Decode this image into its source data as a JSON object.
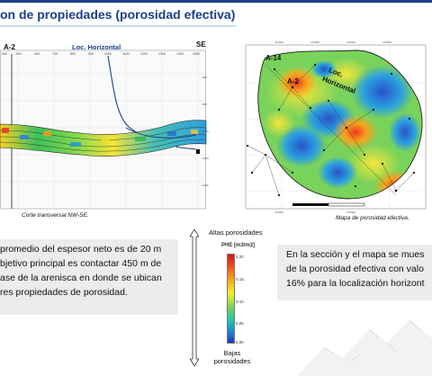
{
  "title": "on de propiedades (porosidad efectiva)",
  "section": {
    "well_label": "A-2",
    "loc_label": "Loc. Horizontal",
    "direction": "SE",
    "caption": "Corte transversal NW-SE."
  },
  "map": {
    "well_a14": "A-14",
    "well_a2": "A-2",
    "loc_line1": "Loc.",
    "loc_line2": "Horizontal",
    "caption": "Mapa de porosidad efectiva."
  },
  "legend": {
    "top_label": "Altas porosidades",
    "title": "PHE [m3/m3]",
    "ticks": [
      "0.20",
      "0.15",
      "0.10",
      "0.05",
      "0.00"
    ],
    "bottom_line1": "Bajas",
    "bottom_line2": "porosidades"
  },
  "left_text": {
    "line1": "promedio del espesor neto es de 20 m",
    "line2": "bjetivo principal es contactar 450 m de",
    "line3": "ase de la arenisca en donde se ubican",
    "line4": "res propiedades de porosidad."
  },
  "right_text": {
    "line1": "En la sección y el mapa se mues",
    "line2": "de la porosidad efectiva con valo",
    "line3": "16% para la localización horizont"
  },
  "colors": {
    "accent": "#1d3f86",
    "box_bg": "#ececec"
  }
}
